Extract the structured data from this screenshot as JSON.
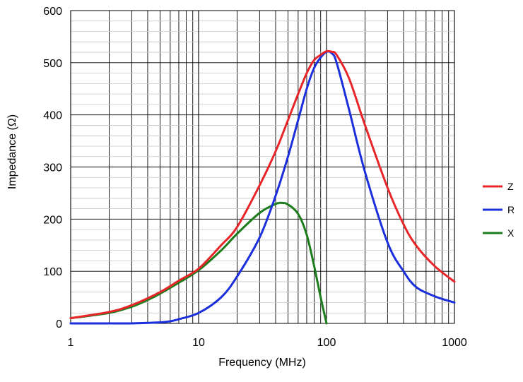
{
  "chart_data": {
    "type": "line",
    "title": "",
    "xlabel": "Frequency (MHz)",
    "ylabel": "Impedance (Ω)",
    "xscale": "log",
    "xlim": [
      1,
      1000
    ],
    "ylim": [
      0,
      600
    ],
    "x_ticks": [
      1,
      10,
      100,
      1000
    ],
    "y_ticks": [
      0,
      100,
      200,
      300,
      400,
      500,
      600
    ],
    "grid": true,
    "legend_position": "right",
    "series": [
      {
        "name": "Z",
        "color": "#e8262a",
        "x": [
          1,
          2,
          3,
          5,
          7,
          10,
          15,
          20,
          30,
          40,
          50,
          60,
          70,
          80,
          90,
          100,
          110,
          120,
          150,
          200,
          300,
          400,
          500,
          700,
          1000
        ],
        "y": [
          10,
          22,
          35,
          60,
          82,
          105,
          150,
          185,
          265,
          330,
          390,
          440,
          480,
          505,
          515,
          522,
          521,
          515,
          470,
          380,
          260,
          190,
          150,
          110,
          80
        ]
      },
      {
        "name": "R",
        "color": "#1b2fdc",
        "x": [
          1,
          2,
          3,
          4,
          5,
          6,
          7,
          10,
          15,
          20,
          30,
          40,
          50,
          60,
          70,
          80,
          90,
          100,
          110,
          120,
          150,
          200,
          300,
          400,
          500,
          700,
          1000
        ],
        "y": [
          0,
          0,
          0,
          1,
          2,
          4,
          8,
          20,
          50,
          90,
          165,
          245,
          320,
          390,
          450,
          490,
          510,
          521,
          518,
          500,
          410,
          290,
          155,
          100,
          70,
          52,
          40
        ]
      },
      {
        "name": "X",
        "color": "#1d7d1d",
        "x": [
          1,
          2,
          3,
          4,
          5,
          7,
          10,
          15,
          20,
          30,
          40,
          45,
          50,
          60,
          70,
          80,
          90,
          100
        ],
        "y": [
          10,
          20,
          32,
          45,
          57,
          78,
          102,
          140,
          172,
          212,
          229,
          231,
          228,
          210,
          170,
          110,
          50,
          0
        ]
      }
    ]
  }
}
